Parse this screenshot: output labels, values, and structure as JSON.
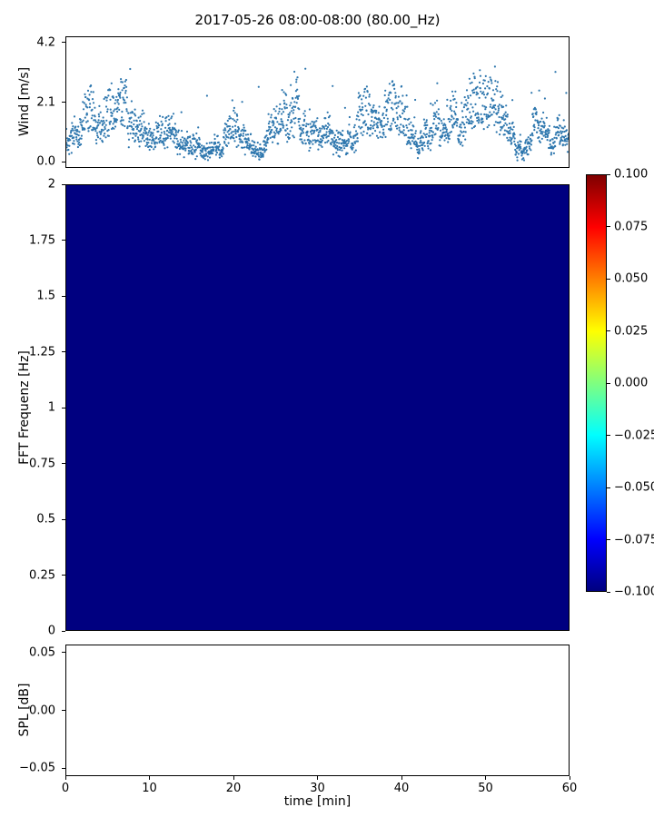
{
  "figure": {
    "title": "2017-05-26 08:00-08:00 (80.00_Hz)",
    "background": "#ffffff"
  },
  "chart_data": [
    {
      "id": "wind",
      "type": "scatter",
      "ylabel": "Wind [m/s]",
      "xlim": [
        0,
        60
      ],
      "ylim": [
        -0.21,
        4.41
      ],
      "yticks": [
        {
          "v": 0.0,
          "label": "0.0"
        },
        {
          "v": 2.1,
          "label": "2.1"
        },
        {
          "v": 4.2,
          "label": "4.2"
        }
      ],
      "marker_color": "#2e77ae",
      "marker_size_px": 1.1,
      "synth": {
        "seed": 7,
        "count": 2100,
        "x_max": 60,
        "y_min": 0.02,
        "y_max": 4.22,
        "description": "dense noisy wind-speed cloud mostly 0-2.5 m/s with intermittent gusts up to ~4.2 m/s over 60 minutes"
      }
    },
    {
      "id": "fft",
      "type": "heatmap",
      "ylabel": "FFT Frequenz [Hz]",
      "ylim": [
        0,
        2
      ],
      "xlim": [
        0,
        60
      ],
      "uniform_value": -0.1,
      "fill_color": "#000080",
      "yticks": [
        {
          "v": 2,
          "label": "2"
        },
        {
          "v": 1.75,
          "label": "1.75"
        },
        {
          "v": 1.5,
          "label": "1.5"
        },
        {
          "v": 1.25,
          "label": "1.25"
        },
        {
          "v": 1,
          "label": "1"
        },
        {
          "v": 0.75,
          "label": "0.75"
        },
        {
          "v": 0.5,
          "label": "0.5"
        },
        {
          "v": 0.25,
          "label": "0.25"
        },
        {
          "v": 0,
          "label": "0"
        }
      ],
      "colorbar": {
        "cmap": "jet",
        "vmin": -0.1,
        "vmax": 0.1,
        "gradient_top_to_bottom": [
          {
            "color": "#7f0000",
            "at": 0
          },
          {
            "color": "#ff0000",
            "at": 12.5
          },
          {
            "color": "#ffff00",
            "at": 37.5
          },
          {
            "color": "#00ffff",
            "at": 62.5
          },
          {
            "color": "#0000ff",
            "at": 87.5
          },
          {
            "color": "#00007f",
            "at": 100
          }
        ],
        "ticks": [
          {
            "v": 0.1,
            "label": "0.100"
          },
          {
            "v": 0.075,
            "label": "0.075"
          },
          {
            "v": 0.05,
            "label": "0.050"
          },
          {
            "v": 0.025,
            "label": "0.025"
          },
          {
            "v": 0.0,
            "label": "0.000"
          },
          {
            "v": -0.025,
            "label": "−0.025"
          },
          {
            "v": -0.05,
            "label": "−0.050"
          },
          {
            "v": -0.075,
            "label": "−0.075"
          },
          {
            "v": -0.1,
            "label": "−0.100"
          }
        ]
      }
    },
    {
      "id": "spl",
      "type": "line",
      "ylabel": "SPL [dB]",
      "xlabel": "time [min]",
      "ylim": [
        -0.057,
        0.057
      ],
      "xlim": [
        0,
        60
      ],
      "yticks": [
        {
          "v": 0.05,
          "label": "0.05"
        },
        {
          "v": 0.0,
          "label": "0.00"
        },
        {
          "v": -0.05,
          "label": "−0.05"
        }
      ],
      "xticks": [
        {
          "v": 0,
          "label": "0"
        },
        {
          "v": 10,
          "label": "10"
        },
        {
          "v": 20,
          "label": "20"
        },
        {
          "v": 30,
          "label": "30"
        },
        {
          "v": 40,
          "label": "40"
        },
        {
          "v": 50,
          "label": "50"
        },
        {
          "v": 60,
          "label": "60"
        }
      ],
      "values": []
    }
  ]
}
